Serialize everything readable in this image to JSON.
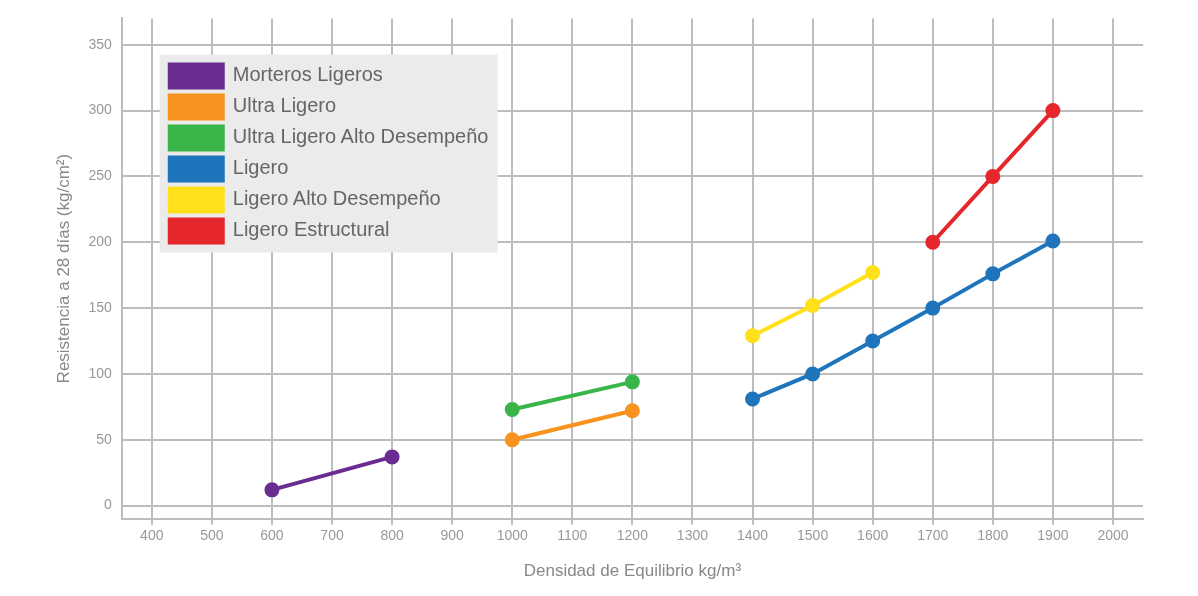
{
  "chart_data": {
    "type": "line",
    "xlabel": "Densidad de Equilibrio kg/m³",
    "ylabel": "Resistencia a 28 días (kg/cm²)",
    "xlim": [
      350,
      2050
    ],
    "xticks": [
      400,
      500,
      600,
      700,
      800,
      900,
      1000,
      1100,
      1200,
      1300,
      1400,
      1500,
      1600,
      1700,
      1800,
      1900,
      2000
    ],
    "ylim": [
      -10,
      370
    ],
    "yticks": [
      0,
      50,
      100,
      150,
      200,
      250,
      300,
      350
    ],
    "grid": true,
    "legend": "top left",
    "marker": "circle",
    "line_style": "solid",
    "series": [
      {
        "name": "Morteros Ligeros",
        "color": "#6a2c91",
        "x": [
          600,
          800
        ],
        "values": [
          12,
          37
        ]
      },
      {
        "name": "Ultra Ligero",
        "color": "#f7931e",
        "x": [
          1000,
          1200
        ],
        "values": [
          50,
          72
        ]
      },
      {
        "name": "Ultra Ligero Alto Desempeño",
        "color": "#39b54a",
        "x": [
          1000,
          1200
        ],
        "values": [
          73,
          94
        ]
      },
      {
        "name": "Ligero",
        "color": "#1f75bc",
        "x": [
          1400,
          1500,
          1600,
          1700,
          1800,
          1900
        ],
        "values": [
          81,
          100,
          125,
          150,
          176,
          201
        ]
      },
      {
        "name": "Ligero Alto Desempeño",
        "color": "#ffe01b",
        "x": [
          1400,
          1500,
          1600
        ],
        "values": [
          129,
          152,
          177
        ]
      },
      {
        "name": "Ligero Estructural",
        "color": "#e5262b",
        "x": [
          1700,
          1800,
          1900
        ],
        "values": [
          200,
          250,
          300
        ]
      }
    ]
  }
}
